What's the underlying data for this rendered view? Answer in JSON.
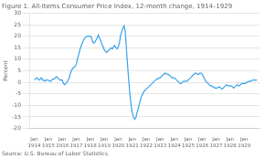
{
  "chart_data": {
    "type": "line",
    "title": "Figure 1. All-Items Consumer Price Index, 12-month change, 1914–1929",
    "ylabel": "Percent",
    "source": "Source: U.S. Bureau of Labor Statistics.",
    "grid": true,
    "xlim": [
      1913.7,
      1930.1
    ],
    "xticks": [
      {
        "value": 1914,
        "label": "Jan\n1914"
      },
      {
        "value": 1915,
        "label": "Jan\n1915"
      },
      {
        "value": 1916,
        "label": "Jan\n1916"
      },
      {
        "value": 1917,
        "label": "Jan\n1917"
      },
      {
        "value": 1918,
        "label": "Jan\n1918"
      },
      {
        "value": 1919,
        "label": "Jan\n1919"
      },
      {
        "value": 1920,
        "label": "Jan\n1920"
      },
      {
        "value": 1921,
        "label": "Jan\n1921"
      },
      {
        "value": 1922,
        "label": "Jan\n1922"
      },
      {
        "value": 1923,
        "label": "Jan\n1923"
      },
      {
        "value": 1924,
        "label": "Jan\n1924"
      },
      {
        "value": 1925,
        "label": "Jan\n1925"
      },
      {
        "value": 1926,
        "label": "Jan\n1926"
      },
      {
        "value": 1927,
        "label": "Jan\n1927"
      },
      {
        "value": 1928,
        "label": "Jan\n1928"
      },
      {
        "value": 1929,
        "label": "Jan\n1929"
      }
    ],
    "ylim": [
      -20,
      30
    ],
    "yticks": [
      -20,
      -15,
      -10,
      -5,
      0,
      5,
      10,
      15,
      20,
      25,
      30
    ],
    "x": [
      1914.0,
      1914.08,
      1914.17,
      1914.25,
      1914.33,
      1914.42,
      1914.5,
      1914.58,
      1914.67,
      1914.75,
      1914.83,
      1914.92,
      1915.0,
      1915.08,
      1915.17,
      1915.25,
      1915.33,
      1915.42,
      1915.5,
      1915.58,
      1915.67,
      1915.75,
      1915.83,
      1915.92,
      1916.0,
      1916.08,
      1916.17,
      1916.25,
      1916.33,
      1916.42,
      1916.5,
      1916.58,
      1916.67,
      1916.75,
      1916.83,
      1916.92,
      1917.0,
      1917.08,
      1917.17,
      1917.25,
      1917.33,
      1917.42,
      1917.5,
      1917.58,
      1917.67,
      1917.75,
      1917.83,
      1917.92,
      1918.0,
      1918.08,
      1918.17,
      1918.25,
      1918.33,
      1918.42,
      1918.5,
      1918.58,
      1918.67,
      1918.75,
      1918.83,
      1918.92,
      1919.0,
      1919.08,
      1919.17,
      1919.25,
      1919.33,
      1919.42,
      1919.5,
      1919.58,
      1919.67,
      1919.75,
      1919.83,
      1919.92,
      1920.0,
      1920.08,
      1920.17,
      1920.25,
      1920.33,
      1920.42,
      1920.5,
      1920.58,
      1920.67,
      1920.75,
      1920.83,
      1920.92,
      1921.0,
      1921.08,
      1921.17,
      1921.25,
      1921.33,
      1921.42,
      1921.5,
      1921.58,
      1921.67,
      1921.75,
      1921.83,
      1921.92,
      1922.0,
      1922.08,
      1922.17,
      1922.25,
      1922.33,
      1922.42,
      1922.5,
      1922.58,
      1922.67,
      1922.75,
      1922.83,
      1922.92,
      1923.0,
      1923.08,
      1923.17,
      1923.25,
      1923.33,
      1923.42,
      1923.5,
      1923.58,
      1923.67,
      1923.75,
      1923.83,
      1923.92,
      1924.0,
      1924.08,
      1924.17,
      1924.25,
      1924.33,
      1924.42,
      1924.5,
      1924.58,
      1924.67,
      1924.75,
      1924.83,
      1924.92,
      1925.0,
      1925.08,
      1925.17,
      1925.25,
      1925.33,
      1925.42,
      1925.5,
      1925.58,
      1925.67,
      1925.75,
      1925.83,
      1925.92,
      1926.0,
      1926.08,
      1926.17,
      1926.25,
      1926.33,
      1926.42,
      1926.5,
      1926.58,
      1926.67,
      1926.75,
      1926.83,
      1926.92,
      1927.0,
      1927.08,
      1927.17,
      1927.25,
      1927.33,
      1927.42,
      1927.5,
      1927.58,
      1927.67,
      1927.75,
      1927.83,
      1927.92,
      1928.0,
      1928.08,
      1928.17,
      1928.25,
      1928.33,
      1928.42,
      1928.5,
      1928.58,
      1928.67,
      1928.75,
      1928.83,
      1928.92,
      1929.0,
      1929.08,
      1929.17,
      1929.25,
      1929.33,
      1929.42,
      1929.5,
      1929.58,
      1929.67,
      1929.75,
      1929.83,
      1929.92
    ],
    "values": [
      1.0,
      1.5,
      2.0,
      1.5,
      1.0,
      1.5,
      2.0,
      1.0,
      1.0,
      0.5,
      1.0,
      1.0,
      1.0,
      0.5,
      0.5,
      1.0,
      1.5,
      1.5,
      2.0,
      2.5,
      2.0,
      1.5,
      1.0,
      1.0,
      1.0,
      -0.5,
      -1.0,
      -0.5,
      0.0,
      1.0,
      2.0,
      4.0,
      5.5,
      6.0,
      6.5,
      7.0,
      8.0,
      10.0,
      12.0,
      14.0,
      15.5,
      17.0,
      18.0,
      19.0,
      19.5,
      20.0,
      20.0,
      20.0,
      20.0,
      19.5,
      17.5,
      17.0,
      17.5,
      18.5,
      19.5,
      20.5,
      19.0,
      18.0,
      16.5,
      15.5,
      14.0,
      13.5,
      13.0,
      13.5,
      14.0,
      14.5,
      15.0,
      14.5,
      15.5,
      16.0,
      15.0,
      14.5,
      15.5,
      17.0,
      20.5,
      22.0,
      23.5,
      24.5,
      22.0,
      15.0,
      7.0,
      1.0,
      -5.0,
      -10.0,
      -13.0,
      -15.0,
      -16.0,
      -15.5,
      -13.5,
      -11.5,
      -9.5,
      -7.5,
      -6.0,
      -5.0,
      -4.0,
      -3.5,
      -3.0,
      -2.5,
      -2.0,
      -1.5,
      -1.0,
      -0.5,
      0.0,
      0.5,
      1.0,
      1.5,
      1.5,
      2.0,
      2.0,
      2.5,
      3.0,
      3.5,
      4.0,
      3.8,
      3.5,
      3.5,
      3.0,
      2.5,
      2.0,
      2.0,
      2.0,
      1.5,
      1.0,
      0.5,
      0.0,
      -0.5,
      -0.5,
      0.0,
      0.5,
      0.5,
      0.5,
      0.5,
      1.0,
      1.5,
      2.0,
      2.5,
      3.0,
      3.5,
      4.0,
      4.0,
      3.5,
      3.5,
      4.0,
      4.0,
      3.5,
      2.5,
      1.5,
      0.5,
      0.0,
      -0.5,
      -1.0,
      -1.5,
      -1.5,
      -2.0,
      -2.0,
      -2.5,
      -2.5,
      -2.5,
      -2.0,
      -2.0,
      -2.5,
      -3.0,
      -2.5,
      -2.0,
      -1.5,
      -1.0,
      -1.5,
      -1.5,
      -1.5,
      -1.5,
      -2.0,
      -2.5,
      -2.0,
      -1.5,
      -1.0,
      -1.5,
      -1.5,
      -1.0,
      -0.5,
      -0.5,
      -0.5,
      -0.5,
      0.0,
      0.0,
      0.5,
      0.5,
      0.5,
      1.0,
      1.0,
      1.0,
      1.0,
      1.0
    ]
  }
}
